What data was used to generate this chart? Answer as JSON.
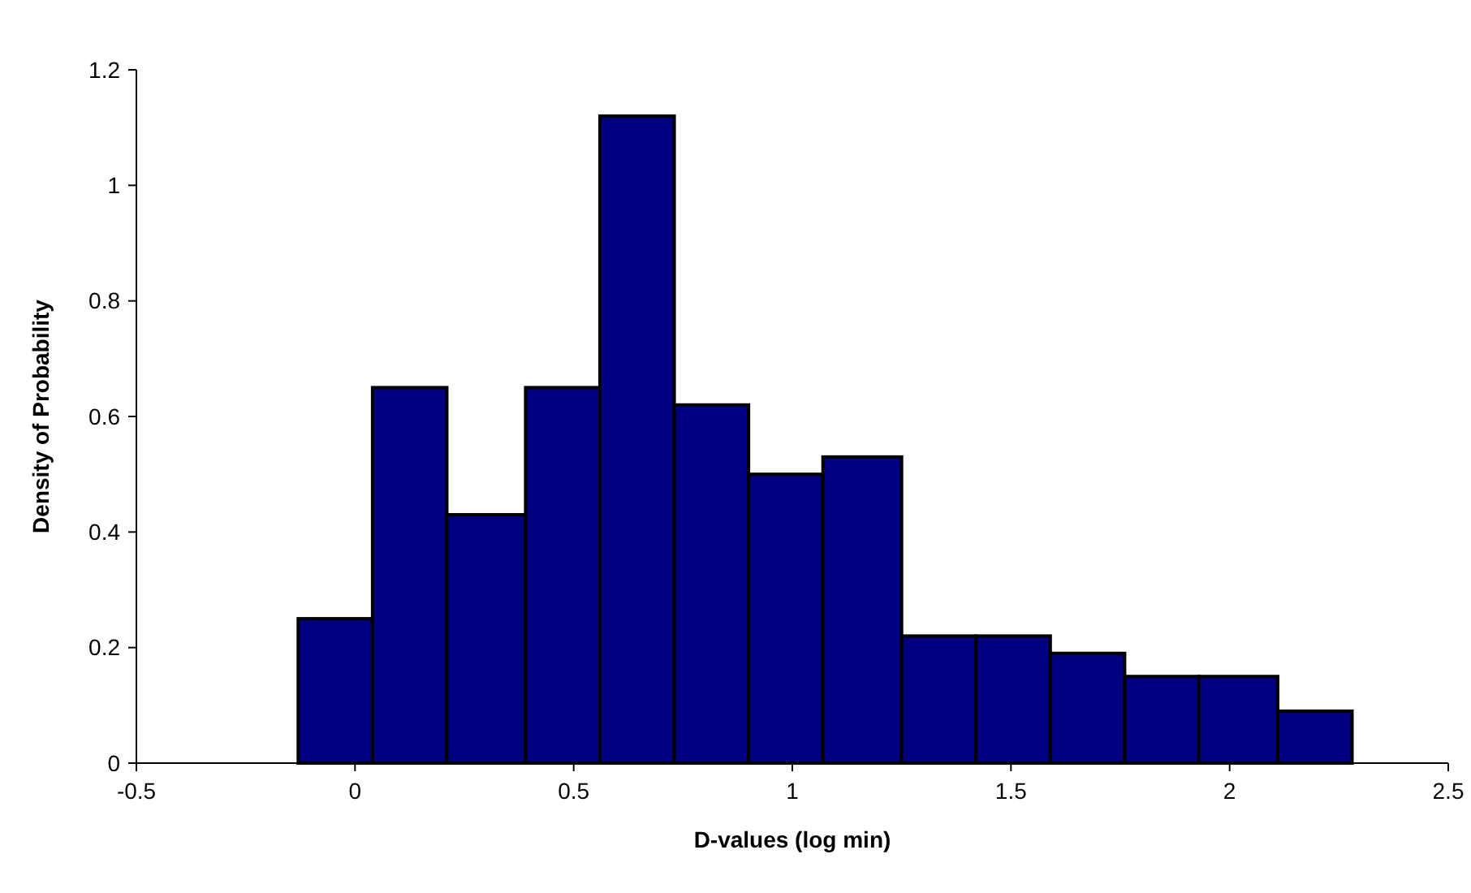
{
  "chart_data": {
    "type": "histogram",
    "xlabel": "D-values (log min)",
    "ylabel": "Density of Probability",
    "bins": [
      -0.13,
      0.04,
      0.21,
      0.39,
      0.56,
      0.73,
      0.9,
      1.07,
      1.25,
      1.42,
      1.59,
      1.76,
      1.93,
      2.11,
      2.28
    ],
    "values": [
      0.25,
      0.65,
      0.43,
      0.65,
      1.12,
      0.62,
      0.5,
      0.53,
      0.22,
      0.22,
      0.19,
      0.15,
      0.15,
      0.09
    ],
    "color": "#000080",
    "xlim": [
      -0.5,
      2.5
    ],
    "xticks": [
      -0.5,
      0,
      0.5,
      1,
      1.5,
      2,
      2.5
    ],
    "ylim": [
      0,
      1.2
    ],
    "yticks": [
      0,
      0.2,
      0.4,
      0.6,
      0.8,
      1,
      1.2
    ],
    "grid": false
  }
}
